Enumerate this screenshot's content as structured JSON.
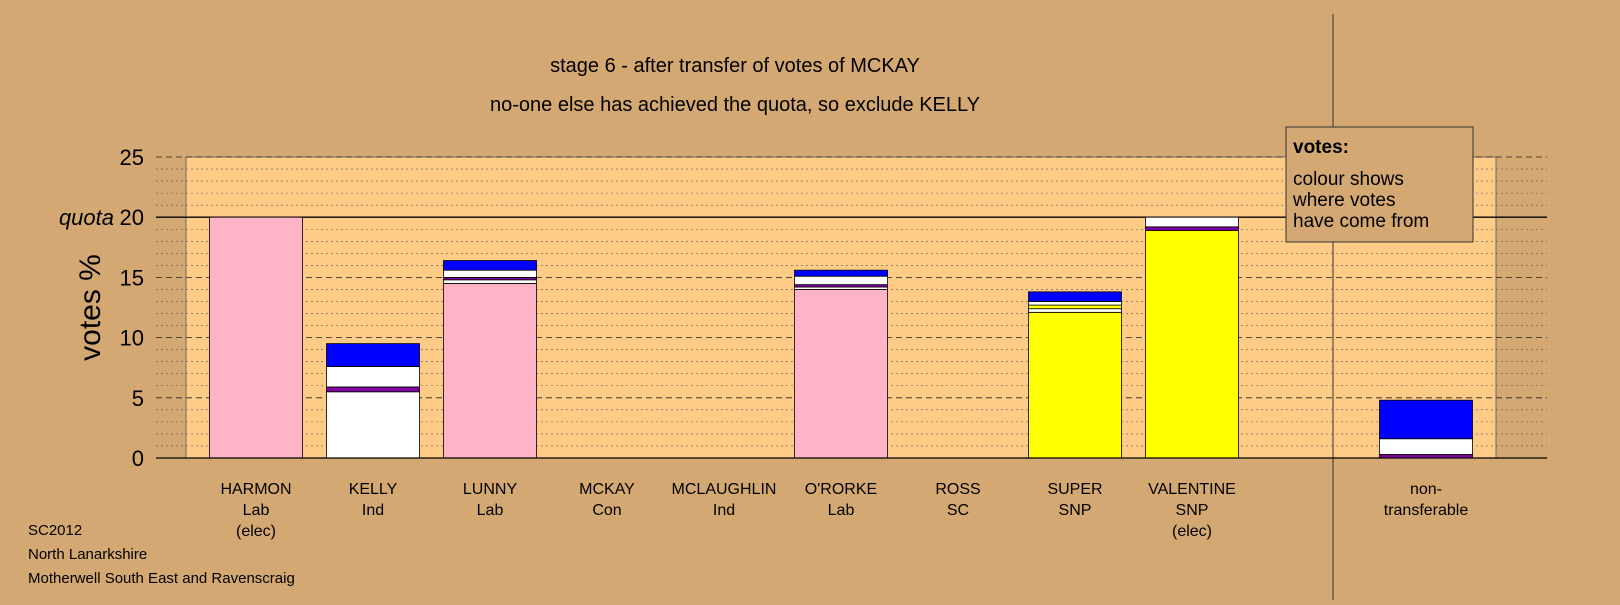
{
  "chart_data": {
    "type": "bar",
    "stacked": true,
    "title": "stage 6 - after transfer of votes of MCKAY",
    "subtitle": "no-one else has achieved the quota, so exclude KELLY",
    "ylabel": "votes %",
    "ylim": [
      0,
      25
    ],
    "yticks": [
      "0",
      "5",
      "10",
      "15",
      "20",
      "25"
    ],
    "quota_label": "quota",
    "quota_value": 20,
    "grid": true,
    "legend": {
      "placement": "top-right",
      "title": "votes:",
      "lines": [
        "colour shows",
        "where votes",
        "have come from"
      ]
    },
    "colors": {
      "pink": "#ffb3c6",
      "white": "#ffffff",
      "purple": "#8000a0",
      "blue": "#0000ff",
      "yellow": "#ffff00",
      "plot_bg": "#ffcc88",
      "page_bg": "#d4a873"
    },
    "categories": [
      {
        "name": "HARMON",
        "party": "Lab",
        "note": "(elec)",
        "segments": [
          {
            "color": "pink",
            "value": 20
          }
        ]
      },
      {
        "name": "KELLY",
        "party": "Ind",
        "note": "",
        "segments": [
          {
            "color": "white",
            "value": 5.5
          },
          {
            "color": "purple",
            "value": 0.4
          },
          {
            "color": "white",
            "value": 1.7
          },
          {
            "color": "blue",
            "value": 1.9
          }
        ]
      },
      {
        "name": "LUNNY",
        "party": "Lab",
        "note": "",
        "segments": [
          {
            "color": "pink",
            "value": 14.5
          },
          {
            "color": "white",
            "value": 0.3
          },
          {
            "color": "purple",
            "value": 0.2
          },
          {
            "color": "white",
            "value": 0.6
          },
          {
            "color": "blue",
            "value": 0.8
          }
        ]
      },
      {
        "name": "MCKAY",
        "party": "Con",
        "note": "",
        "segments": []
      },
      {
        "name": "MCLAUGHLIN",
        "party": "Ind",
        "note": "",
        "segments": []
      },
      {
        "name": "O'RORKE",
        "party": "Lab",
        "note": "",
        "segments": [
          {
            "color": "pink",
            "value": 14.0
          },
          {
            "color": "white",
            "value": 0.2
          },
          {
            "color": "purple",
            "value": 0.2
          },
          {
            "color": "white",
            "value": 0.7
          },
          {
            "color": "blue",
            "value": 0.5
          }
        ]
      },
      {
        "name": "ROSS",
        "party": "SC",
        "note": "",
        "segments": []
      },
      {
        "name": "SUPER",
        "party": "SNP",
        "note": "",
        "segments": [
          {
            "color": "yellow",
            "value": 12.1
          },
          {
            "color": "white",
            "value": 0.3
          },
          {
            "color": "yellow",
            "value": 0.3
          },
          {
            "color": "white",
            "value": 0.3
          },
          {
            "color": "blue",
            "value": 0.8
          }
        ]
      },
      {
        "name": "VALENTINE",
        "party": "SNP",
        "note": "(elec)",
        "segments": [
          {
            "color": "yellow",
            "value": 18.9
          },
          {
            "color": "purple",
            "value": 0.3
          },
          {
            "color": "white",
            "value": 0.8
          }
        ]
      }
    ],
    "nontransferable": {
      "line1": "non-",
      "line2": "transferable",
      "segments": [
        {
          "color": "purple",
          "value": 0.3
        },
        {
          "color": "white",
          "value": 1.3
        },
        {
          "color": "blue",
          "value": 3.2
        }
      ]
    }
  },
  "footer": {
    "line1": "SC2012",
    "line2": "North Lanarkshire",
    "line3": "Motherwell South East and Ravenscraig"
  }
}
